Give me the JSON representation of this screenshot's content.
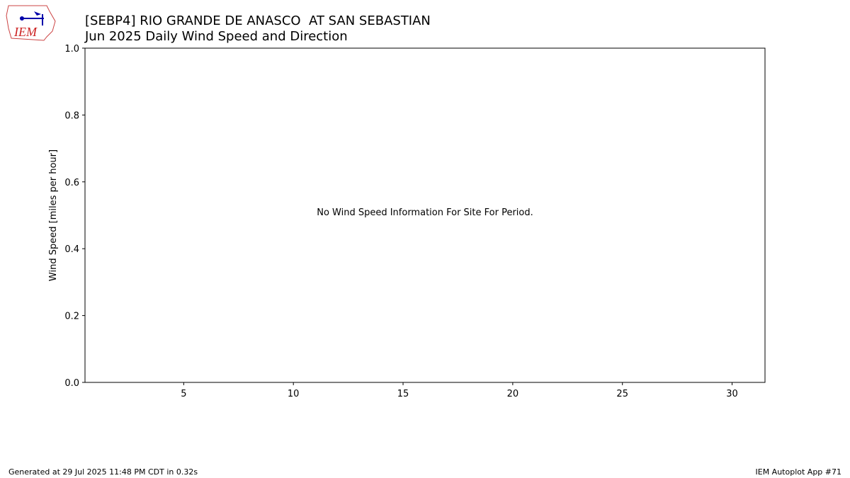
{
  "chart_data": {
    "type": "line",
    "title": "[SEBP4] RIO GRANDE DE ANASCO  AT SAN SEBASTIAN",
    "subtitle": "Jun 2025 Daily Wind Speed and Direction",
    "ylabel": "Wind Speed [miles per hour]",
    "annotation": "No Wind Speed Information For Site For Period.",
    "xlim": [
      0.5,
      31.5
    ],
    "xticks": [
      5,
      10,
      15,
      20,
      25,
      30
    ],
    "ylim": [
      0,
      1
    ],
    "yticks": [
      {
        "value": 0,
        "label": "0.0"
      },
      0.2,
      0.4,
      0.6,
      0.8,
      {
        "value": 1,
        "label": "1.0"
      }
    ]
  },
  "logo": "IEM",
  "footer": {
    "left": "Generated at 29 Jul 2025 11:48 PM CDT in 0.32s",
    "right": "IEM Autoplot App #71"
  }
}
